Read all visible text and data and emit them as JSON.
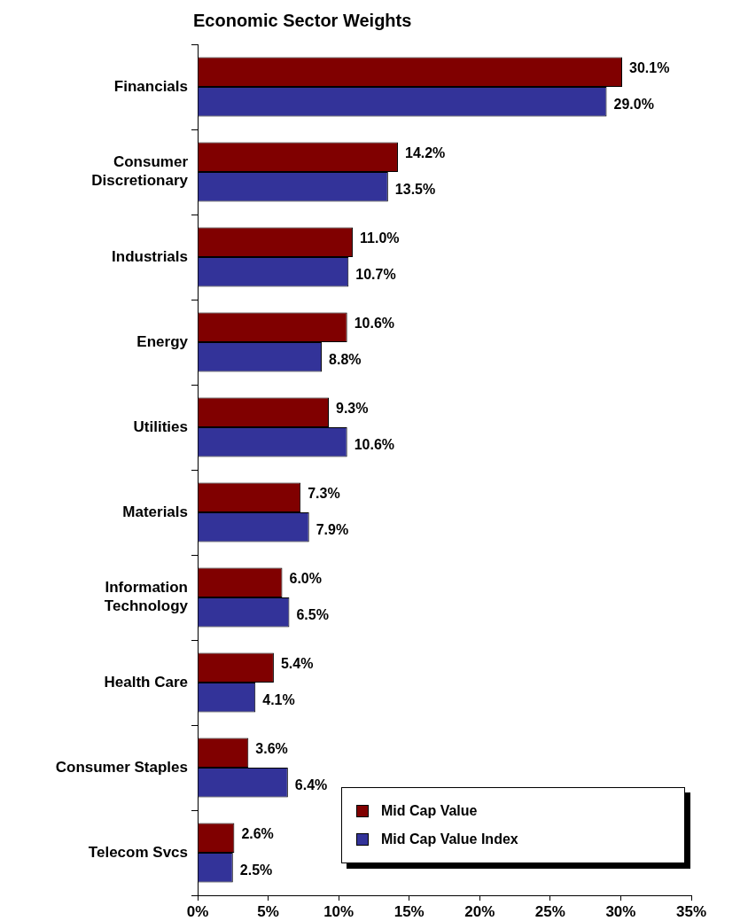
{
  "chart_data": {
    "type": "bar",
    "orientation": "horizontal",
    "title": "Economic Sector Weights",
    "categories": [
      "Financials",
      "Consumer Discretionary",
      "Industrials",
      "Energy",
      "Utilities",
      "Materials",
      "Information Technology",
      "Health Care",
      "Consumer Staples",
      "Telecom Svcs"
    ],
    "series": [
      {
        "name": "Mid Cap Value",
        "color": "#800000",
        "values": [
          30.1,
          14.2,
          11.0,
          10.6,
          9.3,
          7.3,
          6.0,
          5.4,
          3.6,
          2.6
        ],
        "value_labels": [
          "30.1%",
          "14.2%",
          "11.0%",
          "10.6%",
          "9.3%",
          "7.3%",
          "6.0%",
          "5.4%",
          "3.6%",
          "2.6%"
        ]
      },
      {
        "name": "Mid Cap Value Index",
        "color": "#333399",
        "values": [
          29.0,
          13.5,
          10.7,
          8.8,
          10.6,
          7.9,
          6.5,
          4.1,
          6.4,
          2.5
        ],
        "value_labels": [
          "29.0%",
          "13.5%",
          "10.7%",
          "8.8%",
          "10.6%",
          "7.9%",
          "6.5%",
          "4.1%",
          "6.4%",
          "2.5%"
        ]
      }
    ],
    "xlim": [
      0,
      35
    ],
    "xticks": [
      {
        "value": 0,
        "label": "0%"
      },
      {
        "value": 5,
        "label": "5%"
      },
      {
        "value": 10,
        "label": "10%"
      },
      {
        "value": 15,
        "label": "15%"
      },
      {
        "value": 20,
        "label": "20%"
      },
      {
        "value": 25,
        "label": "25%"
      },
      {
        "value": 30,
        "label": "30%"
      },
      {
        "value": 35,
        "label": "35%"
      }
    ],
    "grid": false,
    "legend": "bottom right"
  }
}
